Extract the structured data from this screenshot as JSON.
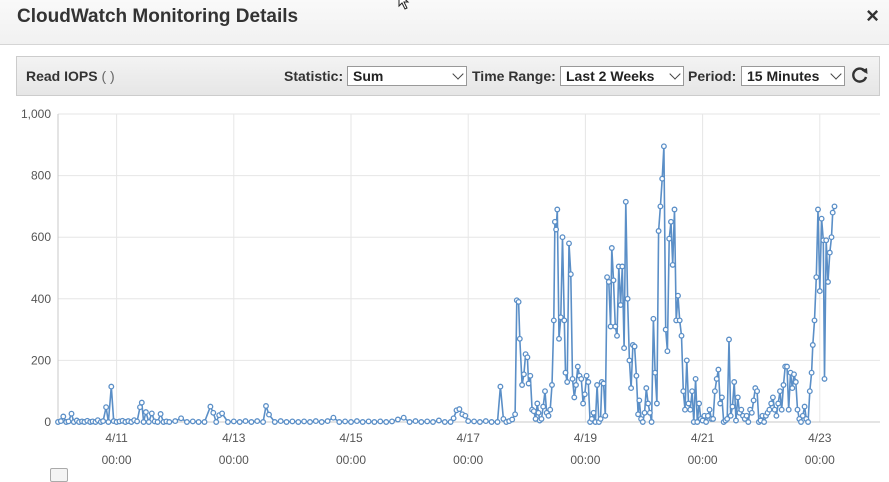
{
  "dialog": {
    "title": "CloudWatch Monitoring Details",
    "close_label": "×"
  },
  "toolbar": {
    "metric_label": "Read IOPS",
    "metric_unit": "( )",
    "statistic_label": "Statistic:",
    "statistic_value": "Sum",
    "time_range_label": "Time Range:",
    "time_range_value": "Last 2 Weeks",
    "period_label": "Period:",
    "period_value": "15 Minutes",
    "refresh_icon": "refresh-icon"
  },
  "chart_data": {
    "type": "line",
    "ylim": [
      0,
      1000
    ],
    "yticks": [
      "1,000",
      "800",
      "600",
      "400",
      "200",
      "0"
    ],
    "xlim": [
      "4/10 00:00",
      "4/23 12:00"
    ],
    "xticks": [
      {
        "date": "4/11",
        "time": "00:00"
      },
      {
        "date": "4/13",
        "time": "00:00"
      },
      {
        "date": "4/15",
        "time": "00:00"
      },
      {
        "date": "4/17",
        "time": "00:00"
      },
      {
        "date": "4/19",
        "time": "00:00"
      },
      {
        "date": "4/21",
        "time": "00:00"
      },
      {
        "date": "4/23",
        "time": "00:00"
      }
    ],
    "grid": true,
    "series_color": "#5b8fc7",
    "series": [
      {
        "values": [
          [
            0.0,
            0
          ],
          [
            0.05,
            3
          ],
          [
            0.09,
            18
          ],
          [
            0.14,
            0
          ],
          [
            0.18,
            2
          ],
          [
            0.23,
            27
          ],
          [
            0.27,
            0
          ],
          [
            0.32,
            5
          ],
          [
            0.36,
            0
          ],
          [
            0.41,
            2
          ],
          [
            0.45,
            0
          ],
          [
            0.5,
            4
          ],
          [
            0.55,
            0
          ],
          [
            0.59,
            2
          ],
          [
            0.64,
            0
          ],
          [
            0.68,
            6
          ],
          [
            0.73,
            0
          ],
          [
            0.77,
            3
          ],
          [
            0.82,
            48
          ],
          [
            0.86,
            0
          ],
          [
            0.91,
            115
          ],
          [
            0.95,
            3
          ],
          [
            1.0,
            0
          ],
          [
            1.05,
            2
          ],
          [
            1.1,
            4
          ],
          [
            1.15,
            0
          ],
          [
            1.2,
            3
          ],
          [
            1.25,
            0
          ],
          [
            1.3,
            6
          ],
          [
            1.35,
            2
          ],
          [
            1.4,
            48
          ],
          [
            1.43,
            63
          ],
          [
            1.46,
            0
          ],
          [
            1.5,
            32
          ],
          [
            1.55,
            0
          ],
          [
            1.6,
            28
          ],
          [
            1.65,
            2
          ],
          [
            1.7,
            0
          ],
          [
            1.75,
            26
          ],
          [
            1.8,
            0
          ],
          [
            1.85,
            2
          ],
          [
            1.9,
            0
          ],
          [
            2.0,
            3
          ],
          [
            2.1,
            12
          ],
          [
            2.2,
            0
          ],
          [
            2.3,
            2
          ],
          [
            2.4,
            0
          ],
          [
            2.5,
            0
          ],
          [
            2.6,
            50
          ],
          [
            2.65,
            30
          ],
          [
            2.7,
            0
          ],
          [
            2.75,
            22
          ],
          [
            2.8,
            28
          ],
          [
            2.9,
            0
          ],
          [
            3.0,
            2
          ],
          [
            3.1,
            0
          ],
          [
            3.2,
            3
          ],
          [
            3.3,
            0
          ],
          [
            3.4,
            3
          ],
          [
            3.5,
            0
          ],
          [
            3.55,
            52
          ],
          [
            3.6,
            24
          ],
          [
            3.7,
            0
          ],
          [
            3.8,
            3
          ],
          [
            3.9,
            0
          ],
          [
            4.0,
            2
          ],
          [
            4.1,
            0
          ],
          [
            4.2,
            2
          ],
          [
            4.3,
            0
          ],
          [
            4.4,
            3
          ],
          [
            4.5,
            0
          ],
          [
            4.6,
            3
          ],
          [
            4.7,
            14
          ],
          [
            4.8,
            0
          ],
          [
            4.9,
            2
          ],
          [
            5.0,
            0
          ],
          [
            5.1,
            3
          ],
          [
            5.2,
            0
          ],
          [
            5.3,
            2
          ],
          [
            5.4,
            0
          ],
          [
            5.5,
            2
          ],
          [
            5.6,
            0
          ],
          [
            5.7,
            2
          ],
          [
            5.8,
            8
          ],
          [
            5.9,
            14
          ],
          [
            6.0,
            0
          ],
          [
            6.1,
            3
          ],
          [
            6.2,
            0
          ],
          [
            6.3,
            2
          ],
          [
            6.4,
            0
          ],
          [
            6.5,
            5
          ],
          [
            6.6,
            0
          ],
          [
            6.7,
            0
          ],
          [
            6.75,
            12
          ],
          [
            6.8,
            38
          ],
          [
            6.85,
            42
          ],
          [
            6.9,
            25
          ],
          [
            6.95,
            20
          ],
          [
            7.0,
            3
          ],
          [
            7.1,
            2
          ],
          [
            7.2,
            0
          ],
          [
            7.3,
            3
          ],
          [
            7.4,
            0
          ],
          [
            7.5,
            0
          ],
          [
            7.55,
            115
          ],
          [
            7.6,
            10
          ],
          [
            7.65,
            0
          ],
          [
            7.7,
            3
          ],
          [
            7.75,
            8
          ],
          [
            7.8,
            25
          ],
          [
            7.83,
            395
          ],
          [
            7.86,
            390
          ],
          [
            7.88,
            270
          ],
          [
            7.92,
            120
          ],
          [
            7.95,
            155
          ],
          [
            7.98,
            220
          ],
          [
            8.01,
            210
          ],
          [
            8.03,
            125
          ],
          [
            8.06,
            150
          ],
          [
            8.09,
            40
          ],
          [
            8.12,
            35
          ],
          [
            8.15,
            10
          ],
          [
            8.18,
            60
          ],
          [
            8.2,
            30
          ],
          [
            8.22,
            5
          ],
          [
            8.25,
            10
          ],
          [
            8.28,
            50
          ],
          [
            8.31,
            100
          ],
          [
            8.34,
            30
          ],
          [
            8.37,
            20
          ],
          [
            8.4,
            40
          ],
          [
            8.43,
            120
          ],
          [
            8.46,
            330
          ],
          [
            8.48,
            650
          ],
          [
            8.5,
            625
          ],
          [
            8.52,
            690
          ],
          [
            8.55,
            270
          ],
          [
            8.58,
            340
          ],
          [
            8.61,
            600
          ],
          [
            8.64,
            330
          ],
          [
            8.66,
            160
          ],
          [
            8.69,
            130
          ],
          [
            8.72,
            580
          ],
          [
            8.75,
            480
          ],
          [
            8.78,
            140
          ],
          [
            8.81,
            80
          ],
          [
            8.84,
            120
          ],
          [
            8.87,
            180
          ],
          [
            8.9,
            150
          ],
          [
            8.93,
            140
          ],
          [
            8.96,
            60
          ],
          [
            8.99,
            90
          ],
          [
            9.02,
            150
          ],
          [
            9.05,
            130
          ],
          [
            9.08,
            0
          ],
          [
            9.11,
            10
          ],
          [
            9.14,
            30
          ],
          [
            9.17,
            0
          ],
          [
            9.2,
            120
          ],
          [
            9.23,
            0
          ],
          [
            9.26,
            10
          ],
          [
            9.28,
            130
          ],
          [
            9.31,
            125
          ],
          [
            9.34,
            20
          ],
          [
            9.37,
            470
          ],
          [
            9.4,
            455
          ],
          [
            9.43,
            310
          ],
          [
            9.45,
            565
          ],
          [
            9.48,
            460
          ],
          [
            9.51,
            310
          ],
          [
            9.54,
            280
          ],
          [
            9.57,
            505
          ],
          [
            9.6,
            380
          ],
          [
            9.63,
            505
          ],
          [
            9.66,
            240
          ],
          [
            9.69,
            715
          ],
          [
            9.72,
            400
          ],
          [
            9.75,
            200
          ],
          [
            9.78,
            110
          ],
          [
            9.81,
            250
          ],
          [
            9.84,
            245
          ],
          [
            9.87,
            150
          ],
          [
            9.9,
            25
          ],
          [
            9.92,
            70
          ],
          [
            9.95,
            10
          ],
          [
            9.98,
            0
          ],
          [
            10.01,
            30
          ],
          [
            10.04,
            110
          ],
          [
            10.07,
            60
          ],
          [
            10.1,
            30
          ],
          [
            10.13,
            0
          ],
          [
            10.16,
            335
          ],
          [
            10.19,
            160
          ],
          [
            10.22,
            60
          ],
          [
            10.25,
            620
          ],
          [
            10.28,
            700
          ],
          [
            10.31,
            790
          ],
          [
            10.34,
            895
          ],
          [
            10.37,
            300
          ],
          [
            10.4,
            230
          ],
          [
            10.43,
            595
          ],
          [
            10.46,
            650
          ],
          [
            10.49,
            510
          ],
          [
            10.52,
            690
          ],
          [
            10.55,
            330
          ],
          [
            10.58,
            410
          ],
          [
            10.61,
            330
          ],
          [
            10.64,
            280
          ],
          [
            10.67,
            100
          ],
          [
            10.7,
            40
          ],
          [
            10.73,
            200
          ],
          [
            10.76,
            60
          ],
          [
            10.79,
            40
          ],
          [
            10.82,
            100
          ],
          [
            10.85,
            0
          ],
          [
            10.88,
            140
          ],
          [
            10.91,
            0
          ],
          [
            10.94,
            60
          ],
          [
            10.97,
            10
          ],
          [
            11.0,
            5
          ],
          [
            11.03,
            20
          ],
          [
            11.06,
            0
          ],
          [
            11.09,
            20
          ],
          [
            11.12,
            40
          ],
          [
            11.15,
            10
          ],
          [
            11.18,
            10
          ],
          [
            11.21,
            100
          ],
          [
            11.24,
            140
          ],
          [
            11.27,
            170
          ],
          [
            11.3,
            60
          ],
          [
            11.33,
            80
          ],
          [
            11.36,
            0
          ],
          [
            11.39,
            5
          ],
          [
            11.42,
            10
          ],
          [
            11.45,
            268
          ],
          [
            11.48,
            20
          ],
          [
            11.51,
            50
          ],
          [
            11.54,
            130
          ],
          [
            11.57,
            5
          ],
          [
            11.6,
            80
          ],
          [
            11.63,
            30
          ],
          [
            11.66,
            40
          ],
          [
            11.69,
            20
          ],
          [
            11.72,
            10
          ],
          [
            11.75,
            20
          ],
          [
            11.78,
            0
          ],
          [
            11.81,
            40
          ],
          [
            11.84,
            30
          ],
          [
            11.87,
            70
          ],
          [
            11.9,
            110
          ],
          [
            11.93,
            100
          ],
          [
            11.96,
            0
          ],
          [
            11.99,
            5
          ],
          [
            12.02,
            20
          ],
          [
            12.05,
            0
          ],
          [
            12.08,
            20
          ],
          [
            12.11,
            30
          ],
          [
            12.14,
            40
          ],
          [
            12.17,
            60
          ],
          [
            12.2,
            80
          ],
          [
            12.23,
            40
          ],
          [
            12.26,
            20
          ],
          [
            12.29,
            60
          ],
          [
            12.32,
            100
          ],
          [
            12.35,
            40
          ],
          [
            12.38,
            120
          ],
          [
            12.41,
            180
          ],
          [
            12.44,
            180
          ],
          [
            12.47,
            40
          ],
          [
            12.5,
            160
          ],
          [
            12.53,
            110
          ],
          [
            12.56,
            155
          ],
          [
            12.59,
            130
          ],
          [
            12.62,
            40
          ],
          [
            12.65,
            10
          ],
          [
            12.68,
            0
          ],
          [
            12.71,
            20
          ],
          [
            12.74,
            50
          ],
          [
            12.77,
            10
          ],
          [
            12.8,
            0
          ],
          [
            12.83,
            100
          ],
          [
            12.86,
            160
          ],
          [
            12.88,
            250
          ],
          [
            12.91,
            330
          ],
          [
            12.94,
            470
          ],
          [
            12.97,
            690
          ],
          [
            13.0,
            425
          ],
          [
            13.03,
            660
          ],
          [
            13.06,
            590
          ],
          [
            13.08,
            140
          ],
          [
            13.11,
            590
          ],
          [
            13.14,
            455
          ],
          [
            13.17,
            550
          ],
          [
            13.2,
            600
          ],
          [
            13.22,
            680
          ],
          [
            13.25,
            700
          ]
        ]
      }
    ]
  }
}
